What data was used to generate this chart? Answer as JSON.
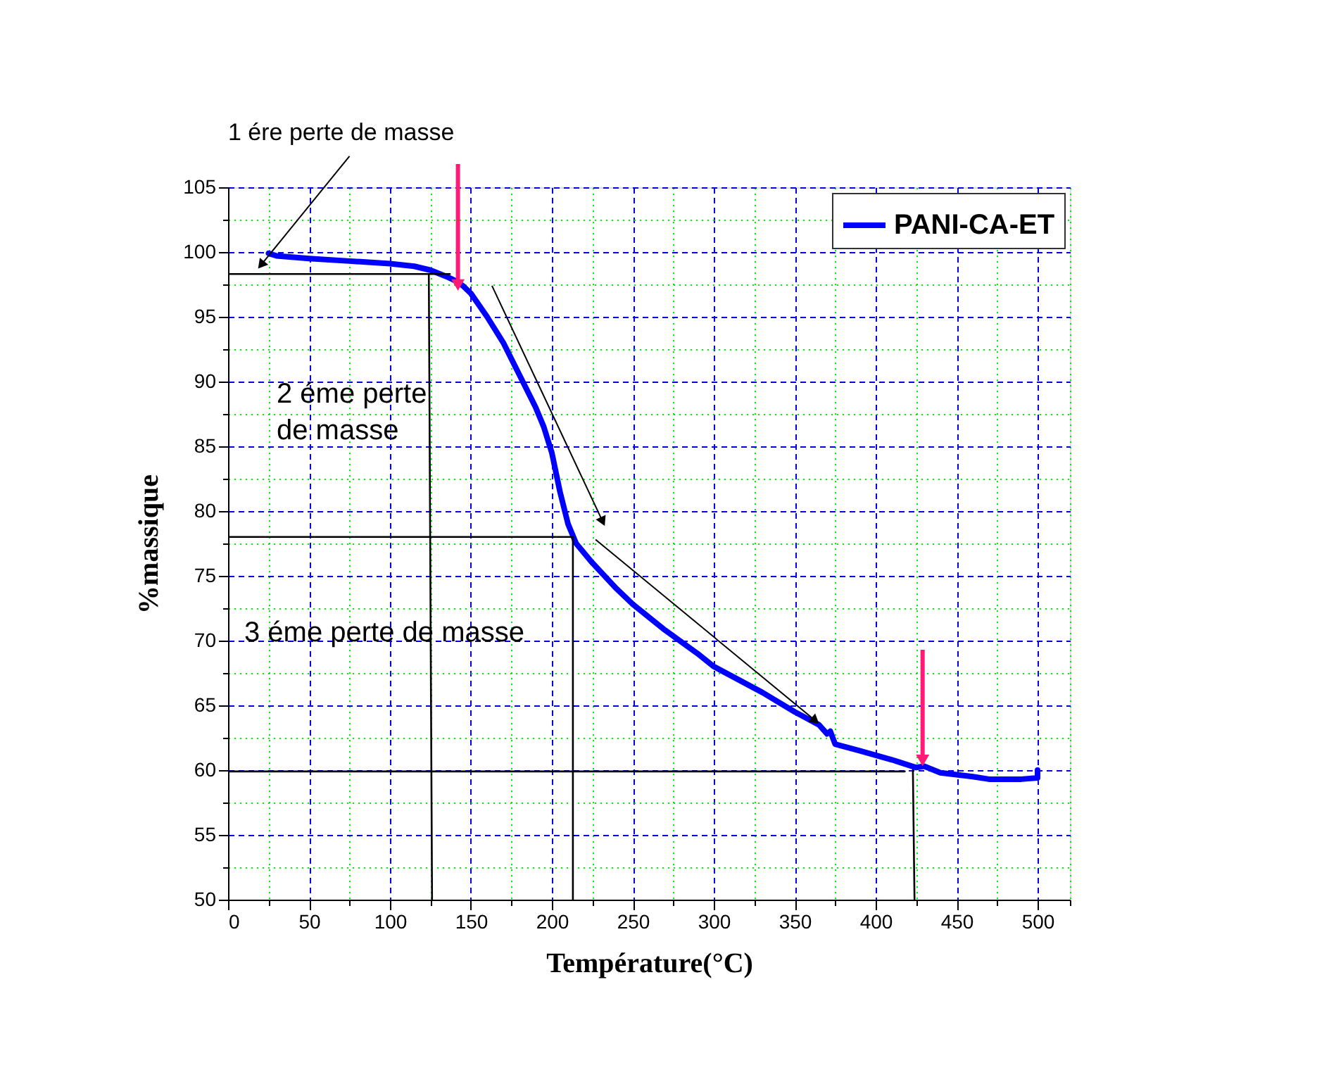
{
  "chart_data": {
    "type": "line",
    "xlabel": "Température(°C)",
    "ylabel": "%massique",
    "xlim": [
      0,
      520
    ],
    "ylim": [
      50,
      105
    ],
    "xticks": [
      0,
      {
        "value": 25,
        "label": null
      },
      50,
      {
        "value": 75,
        "label": null
      },
      100,
      {
        "value": 125,
        "label": null
      },
      150,
      {
        "value": 175,
        "label": null
      },
      200,
      {
        "value": 225,
        "label": null
      },
      250,
      {
        "value": 275,
        "label": null
      },
      300,
      {
        "value": 325,
        "label": null
      },
      350,
      {
        "value": 375,
        "label": null
      },
      400,
      {
        "value": 425,
        "label": null
      },
      450,
      {
        "value": 475,
        "label": null
      },
      500,
      {
        "value": 520,
        "label": null
      }
    ],
    "yticks": [
      50,
      {
        "value": 52.5,
        "label": null
      },
      55,
      {
        "value": 57.5,
        "label": null
      },
      60,
      {
        "value": 62.5,
        "label": null
      },
      65,
      {
        "value": 67.5,
        "label": null
      },
      70,
      {
        "value": 72.5,
        "label": null
      },
      75,
      {
        "value": 77.5,
        "label": null
      },
      80,
      {
        "value": 82.5,
        "label": null
      },
      85,
      {
        "value": 87.5,
        "label": null
      },
      90,
      {
        "value": 92.5,
        "label": null
      },
      95,
      {
        "value": 97.5,
        "label": null
      },
      100,
      {
        "value": 102.5,
        "label": null
      },
      105
    ],
    "grid": true,
    "legend": "top right",
    "line_style": "solid",
    "marker": "none",
    "annotations": [
      {
        "text": "1 ére perte de masse",
        "x": 21,
        "y": 99.1
      },
      "2 éme perte\nde masse",
      "3 éme perte de masse"
    ],
    "series": [
      {
        "name": "PANI-CA-ET",
        "color": "#0000ff",
        "x": [
          25,
          30,
          50,
          75,
          100,
          115,
          125,
          135,
          140,
          145,
          150,
          160,
          170,
          180,
          190,
          195,
          200,
          205,
          210,
          215,
          225,
          240,
          250,
          270,
          290,
          300,
          330,
          350,
          365,
          370,
          372,
          375,
          390,
          410,
          425,
          430,
          440,
          460,
          470,
          490,
          500,
          500
        ],
        "values": [
          99.9,
          99.7,
          99.5,
          99.3,
          99.1,
          98.9,
          98.6,
          98.1,
          97.8,
          97.4,
          96.8,
          95.0,
          93.0,
          90.5,
          88.0,
          86.5,
          84.5,
          81.5,
          79.0,
          77.5,
          76.0,
          74.0,
          72.8,
          70.8,
          69.0,
          68.0,
          66.0,
          64.5,
          63.5,
          62.8,
          63.0,
          62.0,
          61.5,
          60.8,
          60.2,
          60.3,
          59.8,
          59.5,
          59.3,
          59.3,
          59.4,
          60.0
        ]
      },
      {
        "color": "#000000",
        "x": [
          0,
          137
        ],
        "values": [
          98.3,
          98.3
        ]
      },
      {
        "color": "#000000",
        "x": [
          124,
          126
        ],
        "values": [
          98.3,
          50
        ]
      },
      {
        "color": "#000000",
        "x": [
          0,
          213
        ],
        "values": [
          78,
          78
        ]
      },
      {
        "color": "#000000",
        "x": [
          213,
          213
        ],
        "values": [
          78,
          50
        ]
      },
      {
        "color": "#000000",
        "x": [
          0,
          418
        ],
        "values": [
          59.9,
          59.9
        ]
      },
      {
        "color": "#000000",
        "x": [
          423,
          424
        ],
        "values": [
          60,
          50
        ]
      }
    ]
  }
}
